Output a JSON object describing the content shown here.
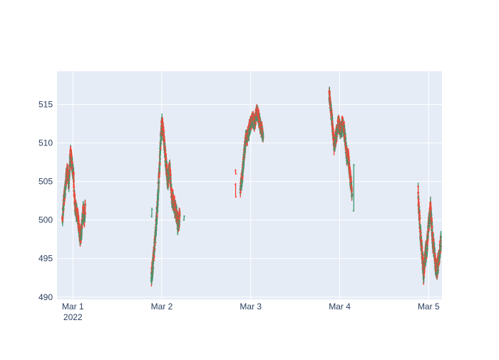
{
  "colors": {
    "plot_bg": "#e5ecf6",
    "grid": "#ffffff",
    "text": "#2a3f5f",
    "increasing": "#3d9970",
    "decreasing": "#ff4136"
  },
  "chart_data": {
    "type": "ohlc",
    "title": "",
    "xlabel": "",
    "ylabel": "",
    "grid": true,
    "legend": "none",
    "xlim": [
      "2022-02-28 19:43",
      "2022-03-05 03:36"
    ],
    "ylim": [
      489.7,
      519.3
    ],
    "x_ticks": [
      {
        "x": "2022-03-01",
        "label": "Mar 1",
        "sublabel": "2022"
      },
      {
        "x": "2022-03-02",
        "label": "Mar 2",
        "sublabel": ""
      },
      {
        "x": "2022-03-03",
        "label": "Mar 3",
        "sublabel": ""
      },
      {
        "x": "2022-03-04",
        "label": "Mar 4",
        "sublabel": ""
      },
      {
        "x": "2022-03-05",
        "label": "Mar 5",
        "sublabel": ""
      }
    ],
    "y_ticks": [
      490,
      495,
      500,
      505,
      510,
      515
    ],
    "sessions": [
      {
        "start": "2022-02-28 21:10",
        "end": "2022-03-01 03:20",
        "path": [
          [
            0.0,
            500.2
          ],
          [
            0.06,
            502.5
          ],
          [
            0.12,
            504.0
          ],
          [
            0.2,
            506.5
          ],
          [
            0.28,
            505.0
          ],
          [
            0.35,
            508.6
          ],
          [
            0.42,
            507.2
          ],
          [
            0.48,
            506.0
          ],
          [
            0.54,
            502.0
          ],
          [
            0.6,
            501.0
          ],
          [
            0.66,
            500.8
          ],
          [
            0.72,
            499.0
          ],
          [
            0.78,
            497.5
          ],
          [
            0.84,
            498.8
          ],
          [
            0.9,
            501.5
          ],
          [
            0.95,
            500.0
          ],
          [
            1.0,
            501.5
          ]
        ],
        "noise": 1.6
      },
      {
        "start": "2022-03-01 21:10",
        "end": "2022-03-02 04:50",
        "path": [
          [
            0.0,
            492.5
          ],
          [
            0.06,
            494.5
          ],
          [
            0.12,
            497.0
          ],
          [
            0.2,
            501.0
          ],
          [
            0.28,
            506.5
          ],
          [
            0.36,
            512.5
          ],
          [
            0.42,
            511.5
          ],
          [
            0.5,
            508.0
          ],
          [
            0.58,
            505.0
          ],
          [
            0.64,
            507.0
          ],
          [
            0.72,
            503.0
          ],
          [
            0.8,
            502.0
          ],
          [
            0.88,
            501.0
          ],
          [
            0.93,
            499.5
          ],
          [
            1.0,
            500.3
          ]
        ],
        "noise": 1.7
      },
      {
        "start": "2022-03-02 21:10",
        "end": "2022-03-03 03:20",
        "path": [
          [
            0.0,
            504.0
          ],
          [
            0.08,
            505.5
          ],
          [
            0.15,
            508.0
          ],
          [
            0.24,
            510.5
          ],
          [
            0.34,
            511.0
          ],
          [
            0.44,
            512.5
          ],
          [
            0.54,
            513.0
          ],
          [
            0.62,
            512.5
          ],
          [
            0.72,
            514.0
          ],
          [
            0.82,
            513.0
          ],
          [
            0.9,
            512.0
          ],
          [
            1.0,
            511.0
          ]
        ],
        "noise": 1.4
      },
      {
        "start": "2022-03-03 21:10",
        "end": "2022-03-04 03:20",
        "path": [
          [
            0.0,
            516.5
          ],
          [
            0.08,
            514.0
          ],
          [
            0.15,
            512.0
          ],
          [
            0.22,
            509.5
          ],
          [
            0.3,
            511.0
          ],
          [
            0.4,
            512.5
          ],
          [
            0.5,
            511.5
          ],
          [
            0.6,
            512.5
          ],
          [
            0.68,
            511.0
          ],
          [
            0.76,
            508.5
          ],
          [
            0.84,
            508.0
          ],
          [
            0.92,
            505.5
          ],
          [
            1.0,
            503.5
          ]
        ],
        "noise": 1.5
      },
      {
        "start": "2022-03-04 21:10",
        "end": "2022-03-05 03:20",
        "path": [
          [
            0.0,
            503.5
          ],
          [
            0.08,
            499.0
          ],
          [
            0.16,
            496.0
          ],
          [
            0.24,
            493.0
          ],
          [
            0.32,
            495.5
          ],
          [
            0.4,
            497.0
          ],
          [
            0.48,
            500.0
          ],
          [
            0.54,
            501.5
          ],
          [
            0.62,
            498.0
          ],
          [
            0.7,
            496.0
          ],
          [
            0.78,
            493.5
          ],
          [
            0.86,
            494.0
          ],
          [
            0.93,
            495.5
          ],
          [
            1.0,
            497.5
          ]
        ],
        "noise": 1.8
      }
    ],
    "scattered_bars": [
      {
        "x": "2022-02-28 21:10",
        "open": 500.4,
        "high": 500.6,
        "low": 499.8,
        "close": 500.0
      },
      {
        "x": "2022-03-01 21:10",
        "open": 492.4,
        "high": 493.1,
        "low": 492.0,
        "close": 493.0
      },
      {
        "x": "2022-03-01 21:18",
        "open": 500.5,
        "high": 501.6,
        "low": 500.3,
        "close": 501.4
      },
      {
        "x": "2022-03-02 06:00",
        "open": 500.0,
        "high": 500.6,
        "low": 499.9,
        "close": 500.5
      },
      {
        "x": "2022-03-02 19:55",
        "open": 506.4,
        "high": 506.6,
        "low": 505.9,
        "close": 506.0
      },
      {
        "x": "2022-03-02 19:55",
        "open": 504.6,
        "high": 504.8,
        "low": 502.9,
        "close": 503.0
      },
      {
        "x": "2022-03-04 03:48",
        "open": 501.2,
        "high": 507.3,
        "low": 501.1,
        "close": 507.1
      }
    ]
  }
}
